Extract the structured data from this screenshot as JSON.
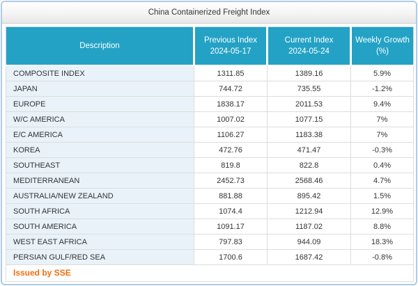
{
  "window": {
    "title": "China Containerized Freight Index"
  },
  "colors": {
    "accent_teal": "#23a2c5",
    "row_highlight": "#e9f2f9",
    "footer_orange": "#f26d0c",
    "container_border": "#aecbe3"
  },
  "table": {
    "columns": [
      {
        "label": "Description",
        "sub": ""
      },
      {
        "label": "Previous Index",
        "sub": "2024-05-17"
      },
      {
        "label": "Current Index",
        "sub": "2024-05-24"
      },
      {
        "label": "Weekly Growth",
        "sub": "(%)"
      }
    ],
    "rows": [
      [
        "COMPOSITE INDEX",
        "1311.85",
        "1389.16",
        "5.9%"
      ],
      [
        "JAPAN",
        "744.72",
        "735.55",
        "-1.2%"
      ],
      [
        "EUROPE",
        "1838.17",
        "2011.53",
        "9.4%"
      ],
      [
        "W/C AMERICA",
        "1007.02",
        "1077.15",
        "7%"
      ],
      [
        "E/C AMERICA",
        "1106.27",
        "1183.38",
        "7%"
      ],
      [
        "KOREA",
        "472.76",
        "471.47",
        "-0.3%"
      ],
      [
        "SOUTHEAST",
        "819.8",
        "822.8",
        "0.4%"
      ],
      [
        "MEDITERRANEAN",
        "2452.73",
        "2568.46",
        "4.7%"
      ],
      [
        "AUSTRALIA/NEW ZEALAND",
        "881.88",
        "895.42",
        "1.5%"
      ],
      [
        "SOUTH AFRICA",
        "1074.4",
        "1212.94",
        "12.9%"
      ],
      [
        "SOUTH AMERICA",
        "1091.17",
        "1187.02",
        "8.8%"
      ],
      [
        "WEST EAST AFRICA",
        "797.83",
        "944.09",
        "18.3%"
      ],
      [
        "PERSIAN GULF/RED SEA",
        "1700.6",
        "1687.42",
        "-0.8%"
      ]
    ]
  },
  "footer": {
    "issued_by": "Issued by SSE"
  }
}
